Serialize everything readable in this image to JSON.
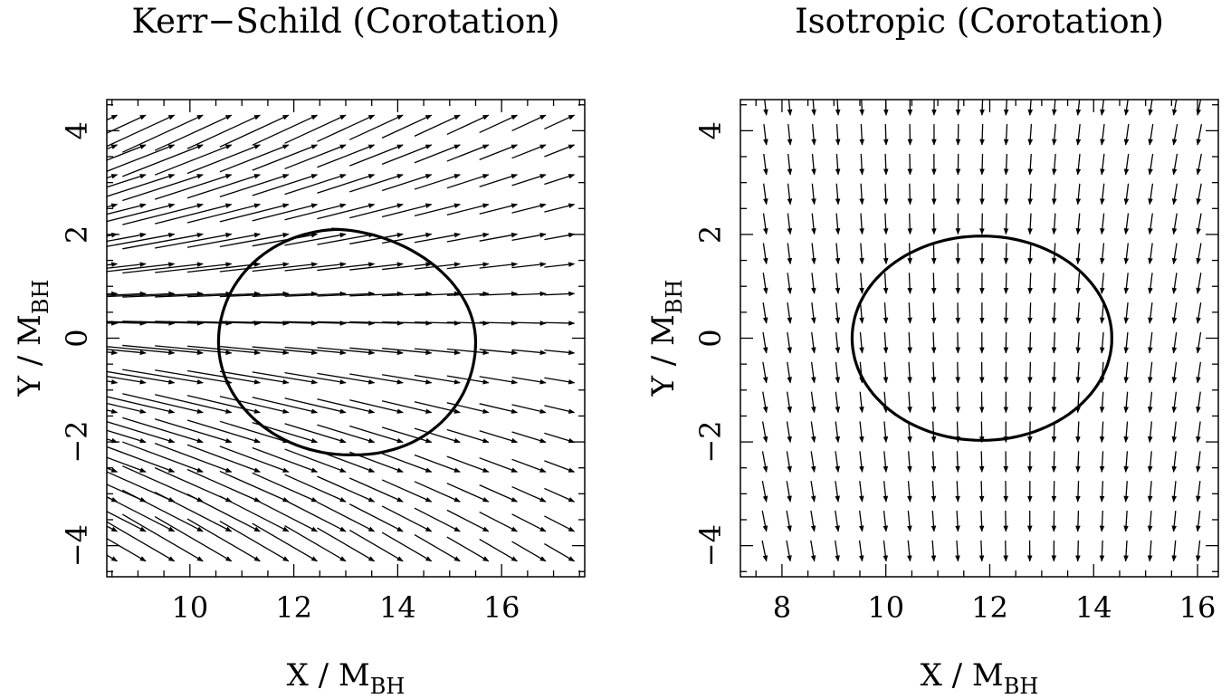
{
  "chart_data": [
    {
      "type": "quiver",
      "title": "Kerr−Schild (Corotation)",
      "xlabel": "X / M",
      "xlabel_sub": "BH",
      "ylabel": "Y / M",
      "ylabel_sub": "BH",
      "xlim": [
        8.4,
        17.6
      ],
      "ylim": [
        -4.6,
        4.6
      ],
      "xticks": [
        10,
        12,
        14,
        16
      ],
      "xtick_labels": [
        "10",
        "12",
        "14",
        "16"
      ],
      "yticks": [
        -4,
        -2,
        0,
        2,
        4
      ],
      "ytick_labels": [
        "−4",
        "−2",
        "0",
        "2",
        "4"
      ],
      "grid": false,
      "field": {
        "x_range": [
          8.6,
          17.4
        ],
        "nx": 17,
        "y_range": [
          -4.3,
          4.3
        ],
        "ny": 16,
        "flow_direction": "left-to-right, converging toward positive x; upward tilt at large y, downward tilt at small y",
        "magnitude": "largest at small x, decreasing with x"
      },
      "horizon": {
        "shape": "closed curve",
        "x_range": [
          10.55,
          15.5
        ],
        "y_range": [
          -2.25,
          2.1
        ]
      }
    },
    {
      "type": "quiver",
      "title": "Isotropic (Corotation)",
      "xlabel": "X / M",
      "xlabel_sub": "BH",
      "ylabel": "Y / M",
      "ylabel_sub": "BH",
      "xlim": [
        7.2,
        16.4
      ],
      "ylim": [
        -4.6,
        4.6
      ],
      "xticks": [
        8,
        10,
        12,
        14,
        16
      ],
      "xtick_labels": [
        "8",
        "10",
        "12",
        "14",
        "16"
      ],
      "yticks": [
        -4,
        -2,
        0,
        2,
        4
      ],
      "ytick_labels": [
        "−4",
        "−2",
        "0",
        "2",
        "4"
      ],
      "grid": false,
      "field": {
        "x_range": [
          7.7,
          16.0
        ],
        "nx": 19,
        "y_range": [
          -4.3,
          4.3
        ],
        "ny": 16,
        "flow_direction": "downward (negative y), slight tilt toward x = 12",
        "magnitude": "nearly uniform"
      },
      "horizon": {
        "shape": "ellipse",
        "center": [
          11.85,
          0.0
        ],
        "rx": 2.5,
        "ry": 1.97
      }
    }
  ]
}
